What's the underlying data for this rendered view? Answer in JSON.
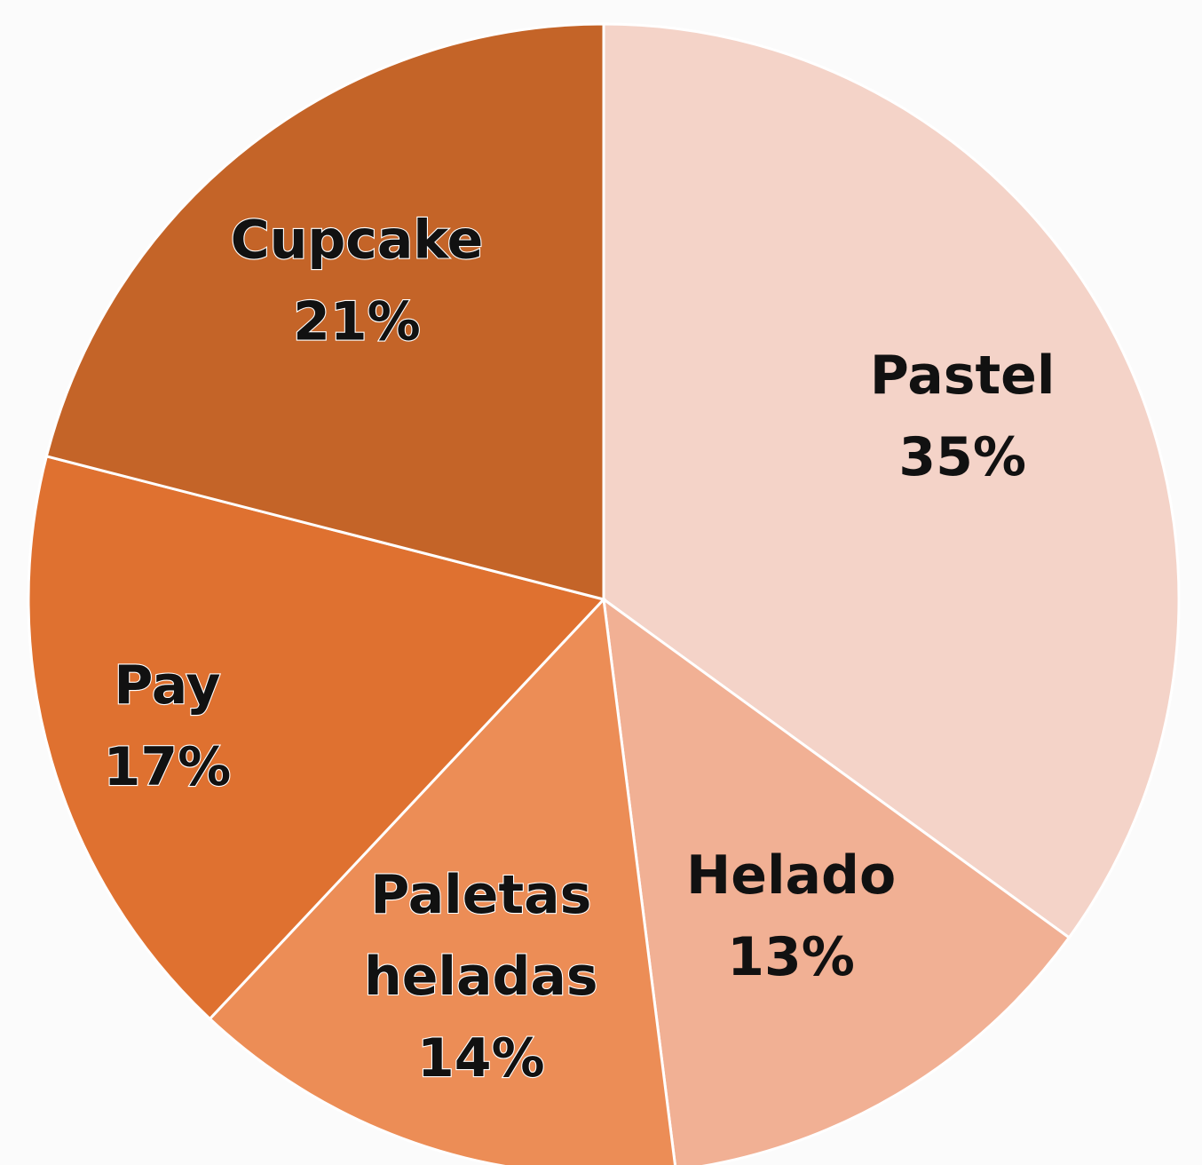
{
  "chart_data": {
    "type": "pie",
    "title": "",
    "slices": [
      {
        "name": "Pastel",
        "value": 35,
        "label_lines": [
          "Pastel",
          "35%"
        ],
        "color": "#f4d3c8"
      },
      {
        "name": "Helado",
        "value": 13,
        "label_lines": [
          "Helado",
          "13%"
        ],
        "color": "#f1b094"
      },
      {
        "name": "Paletas heladas",
        "value": 14,
        "label_lines": [
          "Paletas",
          "heladas",
          "14%"
        ],
        "color": "#ec8d56"
      },
      {
        "name": "Pay",
        "value": 17,
        "label_lines": [
          "Pay",
          "17%"
        ],
        "color": "#df7130"
      },
      {
        "name": "Cupcake",
        "value": 21,
        "label_lines": [
          "Cupcake",
          "21%"
        ],
        "color": "#c46428"
      }
    ],
    "start_direction": "top",
    "direction": "clockwise",
    "legend": "none",
    "data_labels": "inside"
  }
}
